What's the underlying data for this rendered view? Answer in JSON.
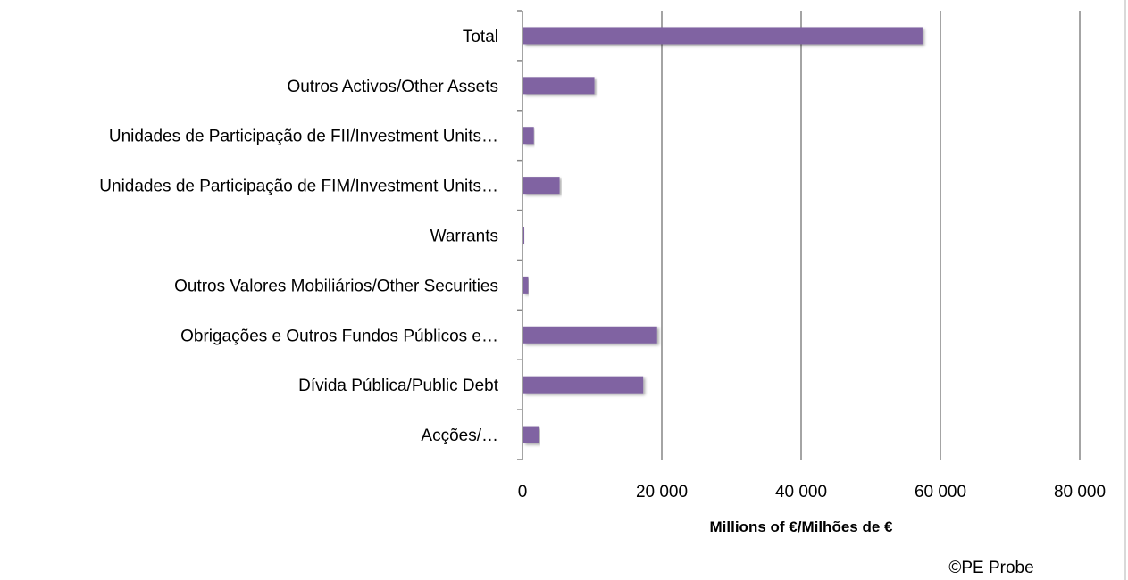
{
  "chart_data": {
    "type": "bar",
    "orientation": "horizontal",
    "categories": [
      "Total",
      "Outros Activos/Other Assets",
      "Unidades de Participação de FII/Investment Units…",
      "Unidades de Participação de FIM/Investment Units…",
      "Warrants",
      "Outros Valores Mobiliários/Other Securities",
      "Obrigações e Outros Fundos Públicos e…",
      "Dívida Pública/Public Debt",
      "Acções/…"
    ],
    "values": [
      57300,
      10200,
      1500,
      5200,
      100,
      700,
      19200,
      17200,
      2300
    ],
    "xlabel": "Millions of €/Milhões de €",
    "xlim": [
      0,
      80000
    ],
    "xticks": [
      0,
      20000,
      40000,
      60000,
      80000
    ],
    "xtick_labels": [
      "0",
      "20 000",
      "40 000",
      "60 000",
      "80 000"
    ],
    "grid": true,
    "bar_color": "#8064a2",
    "credit": "©PE Probe"
  }
}
